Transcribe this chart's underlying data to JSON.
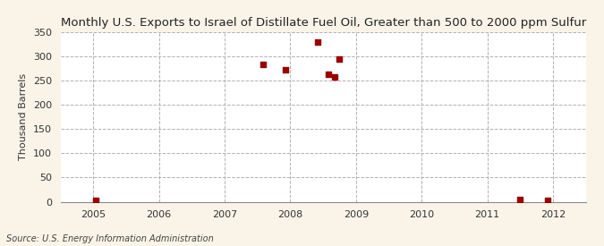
{
  "title": "Monthly U.S. Exports to Israel of Distillate Fuel Oil, Greater than 500 to 2000 ppm Sulfur",
  "ylabel": "Thousand Barrels",
  "source": "Source: U.S. Energy Information Administration",
  "background_color": "#faf4e8",
  "plot_background_color": "#ffffff",
  "marker_color": "#990000",
  "data_points": [
    [
      2005.04,
      2
    ],
    [
      2007.58,
      283
    ],
    [
      2007.92,
      272
    ],
    [
      2008.42,
      330
    ],
    [
      2008.58,
      262
    ],
    [
      2008.67,
      258
    ],
    [
      2008.75,
      295
    ],
    [
      2011.5,
      5
    ],
    [
      2011.92,
      3
    ]
  ],
  "xlim": [
    2004.5,
    2012.5
  ],
  "ylim": [
    0,
    350
  ],
  "yticks": [
    0,
    50,
    100,
    150,
    200,
    250,
    300,
    350
  ],
  "xticks": [
    2005,
    2006,
    2007,
    2008,
    2009,
    2010,
    2011,
    2012
  ],
  "title_fontsize": 9.5,
  "label_fontsize": 8,
  "tick_fontsize": 8,
  "source_fontsize": 7
}
